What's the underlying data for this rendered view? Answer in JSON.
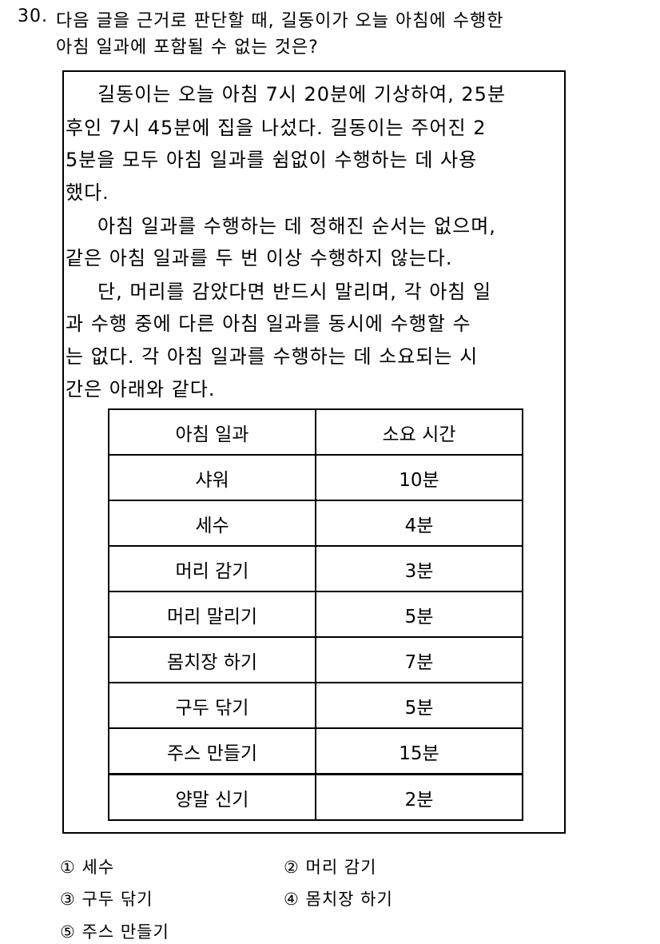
{
  "question": {
    "number": "30.",
    "line1": "다음 글을 근거로 판단할 때, 길동이가 오늘 아침에 수행한",
    "line2": "아침 일과에 포함될 수 없는 것은?"
  },
  "passage": {
    "lines": [
      "길동이는 오늘 아침 7시 20분에 기상하여, 25분",
      "후인 7시 45분에 집을 나섰다. 길동이는 주어진 2",
      "5분을 모두 아침 일과를 쉼없이 수행하는 데 사용",
      "했다.",
      "아침 일과를 수행하는 데 정해진 순서는 없으며,",
      "같은 아침 일과를 두 번 이상 수행하지 않는다.",
      "단, 머리를 감았다면 반드시 말리며, 각 아침 일",
      "과 수행 중에 다른 아침 일과를 동시에 수행할 수",
      "는 없다. 각 아침 일과를 수행하는 데 소요되는 시",
      "간은 아래와 같다."
    ]
  },
  "table": {
    "headers": [
      "아침 일과",
      "소요 시간"
    ],
    "rows": [
      [
        "샤워",
        "10분"
      ],
      [
        "세수",
        "4분"
      ],
      [
        "머리 감기",
        "3분"
      ],
      [
        "머리 말리기",
        "5분"
      ],
      [
        "몸치장 하기",
        "7분"
      ],
      [
        "구두 닦기",
        "5분"
      ],
      [
        "주스 만들기",
        "15분"
      ],
      [
        "양말 신기",
        "2분"
      ]
    ]
  },
  "options": [
    "① 세수",
    "② 머리 감기",
    "③ 구두 닦기",
    "④ 몸치장 하기",
    "⑤ 주스 만들기"
  ]
}
